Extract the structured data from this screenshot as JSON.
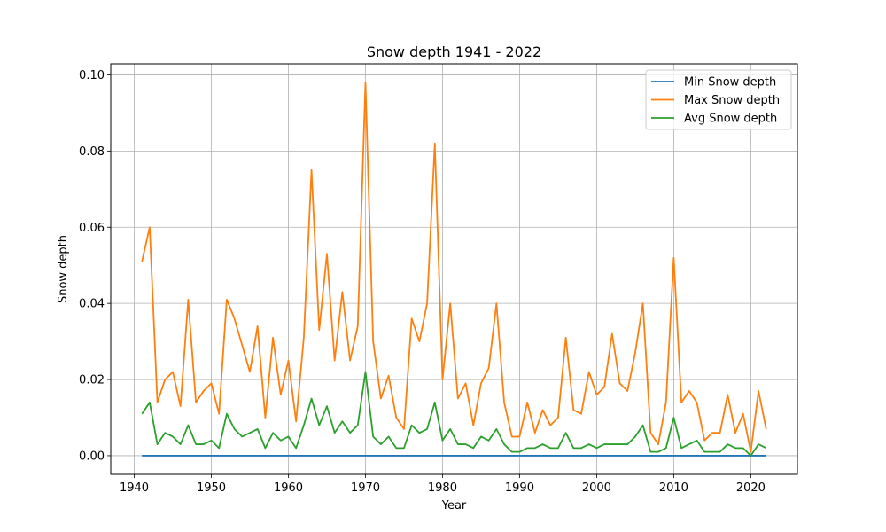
{
  "chart_data": {
    "type": "line",
    "title": "Snow depth 1941 - 2022",
    "xlabel": "Year",
    "ylabel": "Snow depth",
    "xlim": [
      1936.95,
      2026.05
    ],
    "ylim": [
      -0.0049,
      0.1029
    ],
    "xticks": [
      1940,
      1950,
      1960,
      1970,
      1980,
      1990,
      2000,
      2010,
      2020
    ],
    "yticks": [
      0.0,
      0.02,
      0.04,
      0.06,
      0.08,
      0.1
    ],
    "ytick_labels": [
      "0.00",
      "0.02",
      "0.04",
      "0.06",
      "0.08",
      "0.10"
    ],
    "grid": true,
    "legend_position": "top-right",
    "x": [
      1941,
      1942,
      1943,
      1944,
      1945,
      1946,
      1947,
      1948,
      1949,
      1950,
      1951,
      1952,
      1953,
      1954,
      1955,
      1956,
      1957,
      1958,
      1959,
      1960,
      1961,
      1962,
      1963,
      1964,
      1965,
      1966,
      1967,
      1968,
      1969,
      1970,
      1971,
      1972,
      1973,
      1974,
      1975,
      1976,
      1977,
      1978,
      1979,
      1980,
      1981,
      1982,
      1983,
      1984,
      1985,
      1986,
      1987,
      1988,
      1989,
      1990,
      1991,
      1992,
      1993,
      1994,
      1995,
      1996,
      1997,
      1998,
      1999,
      2000,
      2001,
      2002,
      2003,
      2004,
      2005,
      2006,
      2007,
      2008,
      2009,
      2010,
      2011,
      2012,
      2013,
      2014,
      2015,
      2016,
      2017,
      2018,
      2019,
      2020,
      2021,
      2022
    ],
    "series": [
      {
        "name": "Min Snow depth",
        "color": "#1f77b4",
        "values": [
          0,
          0,
          0,
          0,
          0,
          0,
          0,
          0,
          0,
          0,
          0,
          0,
          0,
          0,
          0,
          0,
          0,
          0,
          0,
          0,
          0,
          0,
          0,
          0,
          0,
          0,
          0,
          0,
          0,
          0,
          0,
          0,
          0,
          0,
          0,
          0,
          0,
          0,
          0,
          0,
          0,
          0,
          0,
          0,
          0,
          0,
          0,
          0,
          0,
          0,
          0,
          0,
          0,
          0,
          0,
          0,
          0,
          0,
          0,
          0,
          0,
          0,
          0,
          0,
          0,
          0,
          0,
          0,
          0,
          0,
          0,
          0,
          0,
          0,
          0,
          0,
          0,
          0,
          0,
          0,
          0,
          0
        ]
      },
      {
        "name": "Max Snow depth",
        "color": "#ff7f0e",
        "values": [
          0.051,
          0.06,
          0.014,
          0.02,
          0.022,
          0.013,
          0.041,
          0.014,
          0.017,
          0.019,
          0.011,
          0.041,
          0.036,
          0.029,
          0.022,
          0.034,
          0.01,
          0.031,
          0.016,
          0.025,
          0.009,
          0.031,
          0.075,
          0.033,
          0.053,
          0.025,
          0.043,
          0.025,
          0.034,
          0.098,
          0.03,
          0.015,
          0.021,
          0.01,
          0.007,
          0.036,
          0.03,
          0.04,
          0.082,
          0.02,
          0.04,
          0.015,
          0.019,
          0.008,
          0.019,
          0.023,
          0.04,
          0.014,
          0.005,
          0.005,
          0.014,
          0.006,
          0.012,
          0.008,
          0.01,
          0.031,
          0.012,
          0.011,
          0.022,
          0.016,
          0.018,
          0.032,
          0.019,
          0.017,
          0.027,
          0.04,
          0.006,
          0.003,
          0.014,
          0.052,
          0.014,
          0.017,
          0.014,
          0.004,
          0.006,
          0.006,
          0.016,
          0.006,
          0.011,
          0.001,
          0.017,
          0.007
        ]
      },
      {
        "name": "Avg Snow depth",
        "color": "#2ca02c",
        "values": [
          0.011,
          0.014,
          0.003,
          0.006,
          0.005,
          0.003,
          0.008,
          0.003,
          0.003,
          0.004,
          0.002,
          0.011,
          0.007,
          0.005,
          0.006,
          0.007,
          0.002,
          0.006,
          0.004,
          0.005,
          0.002,
          0.008,
          0.015,
          0.008,
          0.013,
          0.006,
          0.009,
          0.006,
          0.008,
          0.022,
          0.005,
          0.003,
          0.005,
          0.002,
          0.002,
          0.008,
          0.006,
          0.007,
          0.014,
          0.004,
          0.007,
          0.003,
          0.003,
          0.002,
          0.005,
          0.004,
          0.007,
          0.003,
          0.001,
          0.001,
          0.002,
          0.002,
          0.003,
          0.002,
          0.002,
          0.006,
          0.002,
          0.002,
          0.003,
          0.002,
          0.003,
          0.003,
          0.003,
          0.003,
          0.005,
          0.008,
          0.001,
          0.001,
          0.002,
          0.01,
          0.002,
          0.003,
          0.004,
          0.001,
          0.001,
          0.001,
          0.003,
          0.002,
          0.002,
          0.0,
          0.003,
          0.002
        ]
      }
    ]
  }
}
